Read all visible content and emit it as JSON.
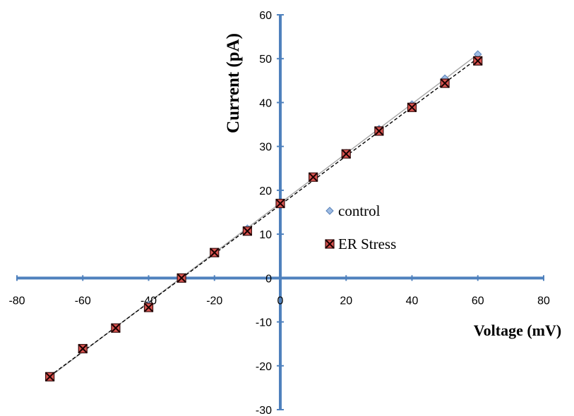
{
  "chart_data": {
    "type": "scatter",
    "xlabel": "Voltage (mV)",
    "ylabel": "Current (pA)",
    "xlim": [
      -80,
      80
    ],
    "ylim": [
      -30,
      60
    ],
    "xticks": [
      -80,
      -60,
      -40,
      -20,
      0,
      20,
      40,
      60,
      80
    ],
    "yticks": [
      -30,
      -20,
      -10,
      0,
      10,
      20,
      30,
      40,
      50,
      60
    ],
    "grid": false,
    "legend_position": "center-right",
    "series": [
      {
        "name": "control",
        "marker": "diamond",
        "color": "#7fa6d9",
        "trendline": "solid",
        "x": [
          -70,
          -60,
          -50,
          -40,
          -30,
          -20,
          -10,
          0,
          10,
          20,
          30,
          40,
          50,
          60
        ],
        "y": [
          -22.5,
          -16.1,
          -11.4,
          -6.1,
          0,
          5.8,
          11.3,
          17,
          23,
          28.5,
          34,
          39.6,
          45.5,
          51
        ]
      },
      {
        "name": "ER Stress",
        "marker": "square-x",
        "color": "#c0504d",
        "trendline": "dashed",
        "x": [
          -70,
          -60,
          -50,
          -40,
          -30,
          -20,
          -10,
          0,
          10,
          20,
          30,
          40,
          50,
          60
        ],
        "y": [
          -22.5,
          -16.1,
          -11.4,
          -6.7,
          0,
          5.8,
          10.7,
          17,
          23,
          28.3,
          33.5,
          38.9,
          44.4,
          49.5
        ]
      }
    ],
    "colors": {
      "axis": "#4f81bd",
      "trend_control": "#a6a6a6",
      "trend_er": "#000000"
    }
  }
}
